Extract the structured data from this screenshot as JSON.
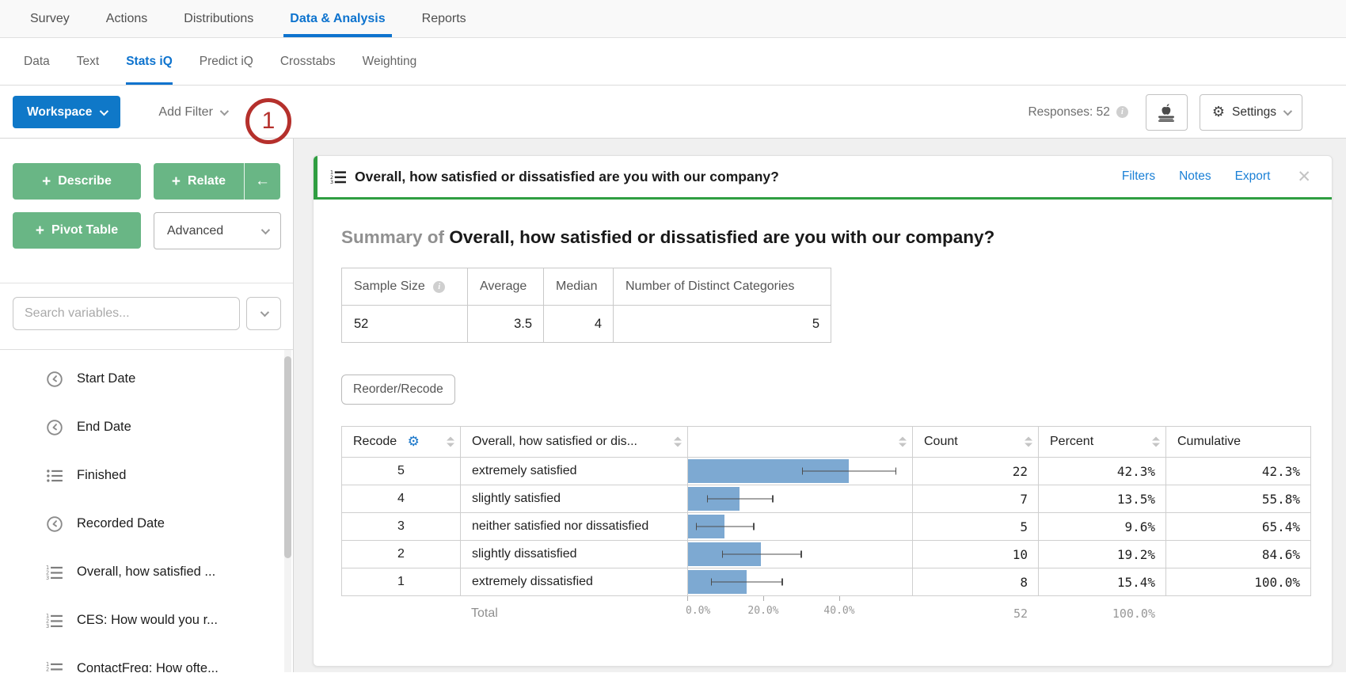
{
  "topnav": {
    "items": [
      {
        "label": "Survey"
      },
      {
        "label": "Actions"
      },
      {
        "label": "Distributions"
      },
      {
        "label": "Data & Analysis"
      },
      {
        "label": "Reports"
      }
    ]
  },
  "subnav": {
    "items": [
      {
        "label": "Data"
      },
      {
        "label": "Text"
      },
      {
        "label": "Stats iQ"
      },
      {
        "label": "Predict iQ"
      },
      {
        "label": "Crosstabs"
      },
      {
        "label": "Weighting"
      }
    ]
  },
  "toolbar": {
    "workspace_label": "Workspace",
    "add_filter_label": "Add Filter",
    "annotation_badge": "1",
    "responses_label": "Responses: 52",
    "settings_label": "Settings"
  },
  "icons": {
    "gear_glyph": "⚙",
    "plus_glyph": "+",
    "back_arrow_glyph": "←",
    "close_glyph": "✕",
    "info_glyph": "i"
  },
  "sidebar": {
    "describe_label": "Describe",
    "relate_label": "Relate",
    "pivot_label": "Pivot Table",
    "advanced_label": "Advanced",
    "search_placeholder": "Search variables...",
    "variables": [
      {
        "label": "Start Date",
        "icon": "clock"
      },
      {
        "label": "End Date",
        "icon": "clock"
      },
      {
        "label": "Finished",
        "icon": "bullet-list"
      },
      {
        "label": "Recorded Date",
        "icon": "clock"
      },
      {
        "label": "Overall, how satisfied ...",
        "icon": "numbered-list"
      },
      {
        "label": "CES: How would you r...",
        "icon": "numbered-list"
      },
      {
        "label": "ContactFreq: How ofte...",
        "icon": "numbered-list"
      }
    ]
  },
  "card": {
    "title": "Overall, how satisfied or dissatisfied are you with our company?",
    "links": {
      "filters": "Filters",
      "notes": "Notes",
      "export": "Export"
    },
    "summary_prefix": "Summary of",
    "summary_title": "Overall, how satisfied or dissatisfied are you with our company?",
    "stats": {
      "headers": [
        "Sample Size",
        "Average",
        "Median",
        "Number of Distinct Categories"
      ],
      "values": [
        "52",
        "3.5",
        "4",
        "5"
      ]
    },
    "reorder_label": "Reorder/Recode"
  },
  "freq": {
    "headers": {
      "recode": "Recode",
      "question": "Overall, how satisfied or dis...",
      "count": "Count",
      "percent": "Percent",
      "cumulative": "Cumulative"
    },
    "rows": [
      {
        "recode": "5",
        "label": "extremely satisfied",
        "count": "22",
        "percent": "42.3%",
        "cumulative": "42.3%",
        "bar_pct": 42.3,
        "ci_low": 30.0,
        "ci_high": 55.0
      },
      {
        "recode": "4",
        "label": "slightly satisfied",
        "count": "7",
        "percent": "13.5%",
        "cumulative": "55.8%",
        "bar_pct": 13.5,
        "ci_low": 5.0,
        "ci_high": 22.5
      },
      {
        "recode": "3",
        "label": "neither satisfied nor dissatisfied",
        "count": "5",
        "percent": "9.6%",
        "cumulative": "65.4%",
        "bar_pct": 9.6,
        "ci_low": 2.0,
        "ci_high": 17.5
      },
      {
        "recode": "2",
        "label": "slightly dissatisfied",
        "count": "10",
        "percent": "19.2%",
        "cumulative": "84.6%",
        "bar_pct": 19.2,
        "ci_low": 9.0,
        "ci_high": 30.0
      },
      {
        "recode": "1",
        "label": "extremely dissatisfied",
        "count": "8",
        "percent": "15.4%",
        "cumulative": "100.0%",
        "bar_pct": 15.4,
        "ci_low": 6.0,
        "ci_high": 25.0
      }
    ],
    "total": {
      "label": "Total",
      "count": "52",
      "percent": "100.0%"
    },
    "axis_ticks": [
      "0.0%",
      "20.0%",
      "40.0%"
    ]
  },
  "chart_data": {
    "type": "bar",
    "orientation": "horizontal",
    "categories": [
      "extremely satisfied",
      "slightly satisfied",
      "neither satisfied nor dissatisfied",
      "slightly dissatisfied",
      "extremely dissatisfied"
    ],
    "values": [
      42.3,
      13.5,
      9.6,
      19.2,
      15.4
    ],
    "counts": [
      22,
      7,
      5,
      10,
      8
    ],
    "cumulative": [
      42.3,
      55.8,
      65.4,
      84.6,
      100.0
    ],
    "xlabel": "Percent",
    "ylabel": "",
    "xlim": [
      0,
      59
    ],
    "tick_labels": [
      "0.0%",
      "20.0%",
      "40.0%"
    ],
    "sample_size": 52,
    "average": 3.5,
    "median": 4,
    "distinct_categories": 5
  },
  "colors": {
    "accent_blue": "#0d73ce",
    "link_blue": "#1b80d6",
    "green_button": "#69b685",
    "green_accent": "#2f9e41",
    "bar_blue": "#7da9d2",
    "annotation_red": "#b5302c"
  }
}
